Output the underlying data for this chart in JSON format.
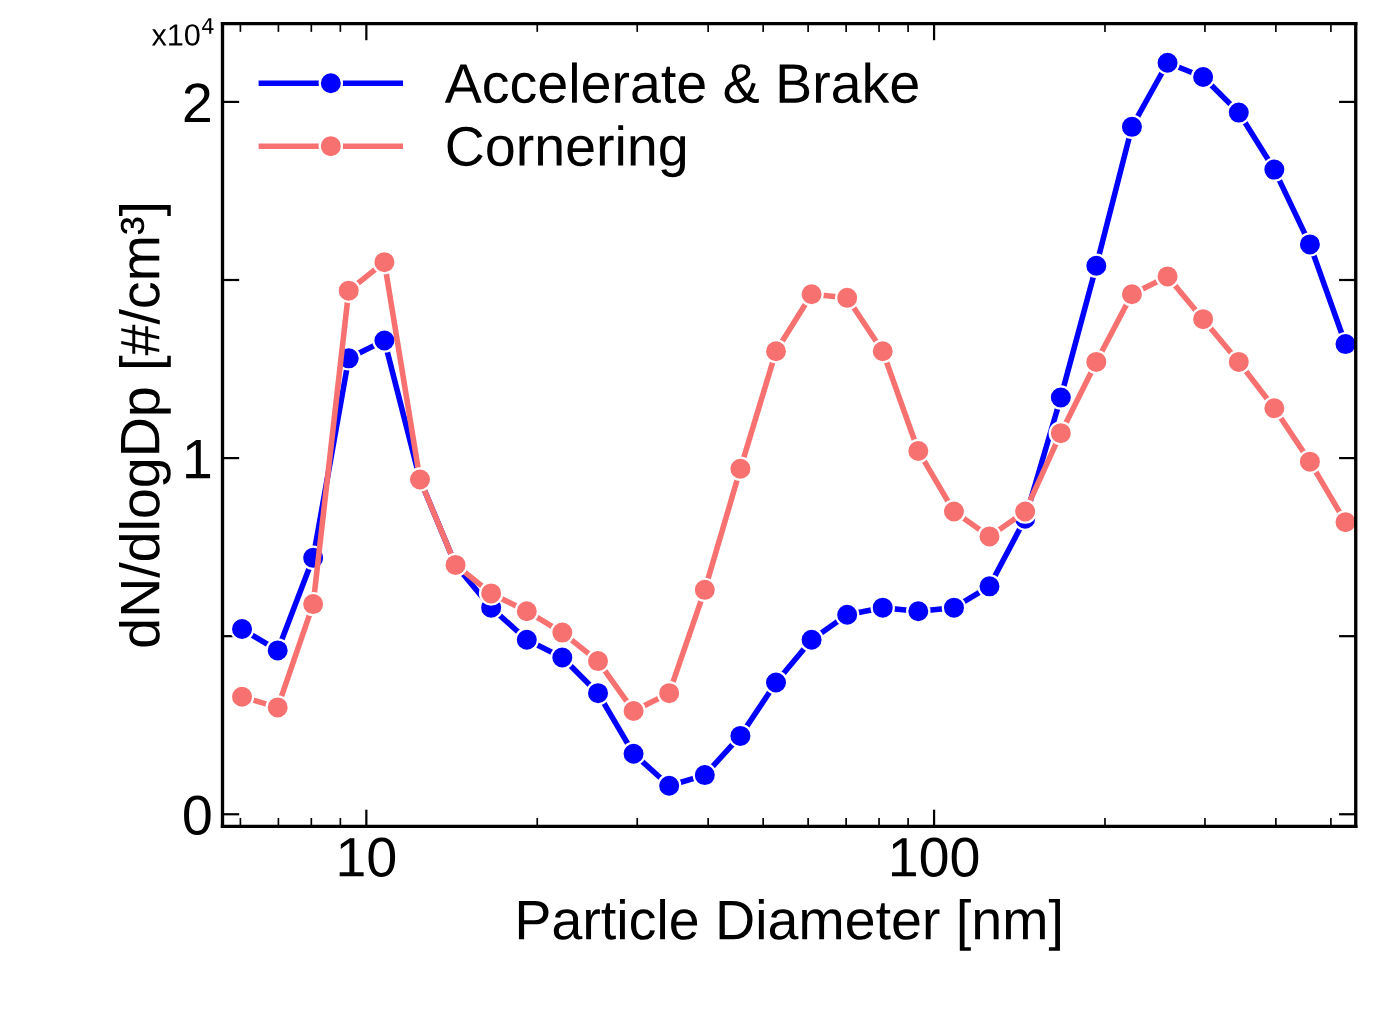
{
  "chart_data": {
    "type": "line",
    "xlabel": "Particle Diameter [nm]",
    "ylabel": "dN/dlogDp [#/cm³]",
    "annotations": [
      "x10$^{4}$"
    ],
    "x": [
      6.04,
      6.98,
      8.06,
      9.31,
      10.76,
      12.43,
      14.36,
      16.59,
      19.17,
      22.14,
      25.59,
      29.56,
      34.15,
      39.46,
      45.59,
      52.67,
      60.85,
      70.3,
      81.2,
      93.8,
      108.4,
      125.2,
      144.7,
      167.2,
      193.1,
      223.1,
      257.8,
      297.8,
      344.1,
      397.5,
      459.2,
      530.5
    ],
    "series": [
      {
        "name": "Accelerate & Brake",
        "color": "#0000ff",
        "values": [
          0.52,
          0.46,
          0.72,
          1.28,
          1.33,
          0.94,
          0.7,
          0.58,
          0.49,
          0.44,
          0.34,
          0.17,
          0.08,
          0.11,
          0.22,
          0.37,
          0.49,
          0.56,
          0.58,
          0.57,
          0.58,
          0.64,
          0.83,
          1.17,
          1.54,
          1.93,
          2.11,
          2.07,
          1.97,
          1.81,
          1.6,
          1.32
        ]
      },
      {
        "name": "Cornering",
        "color": "#f87171",
        "values": [
          0.33,
          0.3,
          0.59,
          1.47,
          1.55,
          0.94,
          0.7,
          0.62,
          0.57,
          0.51,
          0.43,
          0.29,
          0.34,
          0.63,
          0.97,
          1.3,
          1.46,
          1.45,
          1.3,
          1.02,
          0.85,
          0.78,
          0.85,
          1.07,
          1.27,
          1.46,
          1.51,
          1.39,
          1.27,
          1.14,
          0.99,
          0.82
        ]
      }
    ],
    "log": "x",
    "xlim": [
      5.58,
      553
    ],
    "xticks": [
      10,
      100
    ],
    "ylim": [
      -0.034,
      2.22
    ],
    "yticks": [
      0,
      {
        "value": 0.5,
        "label": null
      },
      1,
      {
        "value": 1.5,
        "label": null
      },
      2
    ],
    "marker": "circle",
    "line_style": "solid",
    "grid": false,
    "legend": "top left"
  }
}
